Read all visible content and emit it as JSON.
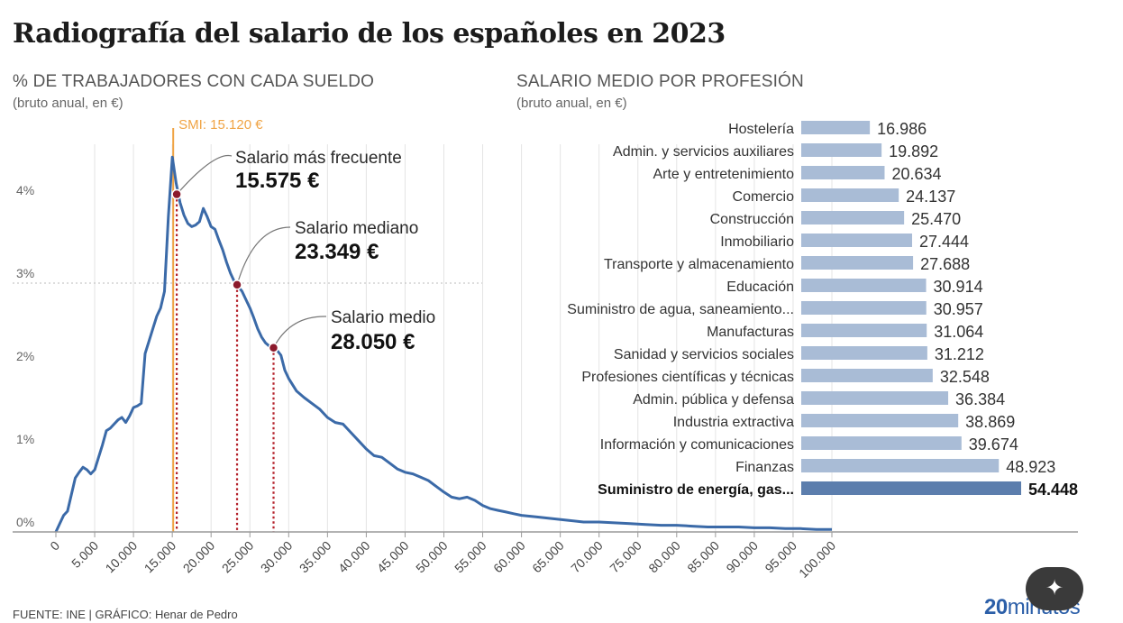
{
  "title": "Radiografía del salario de los españoles en 2023",
  "left": {
    "heading": "% DE TRABAJADORES CON CADA SUELDO",
    "subheading": "(bruto anual, en €)"
  },
  "right": {
    "heading": "SALARIO MEDIO POR PROFESIÓN",
    "subheading": "(bruto anual, en €)"
  },
  "footer": {
    "source": "FUENTE: INE | GRÁFICO: Henar de Pedro"
  },
  "brand": {
    "bold": "20",
    "light": "minutos"
  },
  "fab_icon": "magic-wand-icon",
  "colors": {
    "line": "#3b6aa8",
    "bar": "#a9bcd6",
    "bar_highlight": "#5c7ead",
    "marker_fill": "#8c1a2c",
    "smi": "#f0a445",
    "dotted": "#b4202a"
  },
  "chart_data": [
    {
      "type": "line",
      "title": "% DE TRABAJADORES CON CADA SUELDO",
      "subtitle": "(bruto anual, en €)",
      "xlabel": "",
      "ylabel": "",
      "xlim": [
        0,
        100000
      ],
      "ylim": [
        0,
        4.5
      ],
      "x_ticks": [
        0,
        5000,
        10000,
        15000,
        20000,
        25000,
        30000,
        35000,
        40000,
        45000,
        50000,
        55000,
        60000,
        65000,
        70000,
        75000,
        80000,
        85000,
        90000,
        95000,
        100000
      ],
      "x_tick_labels": [
        "0",
        "5.000",
        "10.000",
        "15.000",
        "20.000",
        "25.000",
        "30.000",
        "35.000",
        "40.000",
        "45.000",
        "50.000",
        "55.000",
        "60.000",
        "65.000",
        "70.000",
        "75.000",
        "80.000",
        "85.000",
        "90.000",
        "95.000",
        "100.000"
      ],
      "y_ticks": [
        0,
        1,
        2,
        3,
        4
      ],
      "y_tick_labels": [
        "0%",
        "1%",
        "2%",
        "3%",
        "4%"
      ],
      "grid": "vertical lines at x ticks, dotted line at 3%",
      "series": [
        {
          "x": [
            0,
            500,
            1000,
            1500,
            2000,
            2500,
            3000,
            3500,
            4000,
            4500,
            5000,
            5500,
            6000,
            6500,
            7000,
            7500,
            8000,
            8500,
            9000,
            9500,
            10000,
            10500,
            11000,
            11500,
            12000,
            12500,
            13000,
            13500,
            14000,
            14500,
            15000,
            15500,
            16000,
            16500,
            17000,
            17500,
            18000,
            18500,
            19000,
            19500,
            20000,
            20500,
            21000,
            21500,
            22000,
            22500,
            23000,
            23500,
            24000,
            24500,
            25000,
            25500,
            26000,
            26500,
            27000,
            27500,
            28000,
            28500,
            29000,
            29500,
            30000,
            31000,
            32000,
            33000,
            34000,
            35000,
            36000,
            37000,
            38000,
            39000,
            40000,
            41000,
            42000,
            43000,
            44000,
            45000,
            46000,
            47000,
            48000,
            49000,
            50000,
            51000,
            52000,
            53000,
            54000,
            55000,
            56000,
            57000,
            58000,
            59000,
            60000,
            62000,
            64000,
            66000,
            68000,
            70000,
            72000,
            74000,
            76000,
            78000,
            80000,
            82000,
            84000,
            86000,
            88000,
            90000,
            92000,
            94000,
            96000,
            98000,
            100000
          ],
          "y": [
            0.0,
            0.1,
            0.2,
            0.25,
            0.45,
            0.65,
            0.72,
            0.78,
            0.75,
            0.7,
            0.75,
            0.9,
            1.05,
            1.22,
            1.25,
            1.3,
            1.35,
            1.38,
            1.32,
            1.4,
            1.5,
            1.52,
            1.55,
            2.15,
            2.3,
            2.45,
            2.6,
            2.7,
            2.9,
            3.8,
            4.52,
            4.2,
            3.97,
            3.82,
            3.72,
            3.68,
            3.7,
            3.74,
            3.9,
            3.8,
            3.68,
            3.65,
            3.52,
            3.4,
            3.25,
            3.12,
            3.02,
            2.96,
            2.9,
            2.8,
            2.7,
            2.58,
            2.45,
            2.35,
            2.28,
            2.24,
            2.22,
            2.19,
            2.13,
            1.95,
            1.85,
            1.7,
            1.62,
            1.55,
            1.48,
            1.38,
            1.32,
            1.3,
            1.2,
            1.1,
            1.0,
            0.92,
            0.9,
            0.83,
            0.76,
            0.72,
            0.7,
            0.66,
            0.62,
            0.55,
            0.48,
            0.42,
            0.4,
            0.42,
            0.38,
            0.32,
            0.28,
            0.26,
            0.24,
            0.22,
            0.2,
            0.18,
            0.16,
            0.14,
            0.12,
            0.12,
            0.11,
            0.1,
            0.09,
            0.08,
            0.08,
            0.07,
            0.06,
            0.06,
            0.06,
            0.05,
            0.05,
            0.04,
            0.04,
            0.03,
            0.03
          ]
        }
      ],
      "reference_line": {
        "label": "SMI: 15.120 €",
        "x": 15120
      },
      "annotations": [
        {
          "label": "Salario más frecuente",
          "value": "15.575 €",
          "x": 15575,
          "y": 4.07
        },
        {
          "label": "Salario mediano",
          "value": "23.349 €",
          "x": 23349,
          "y": 2.98
        },
        {
          "label": "Salario medio",
          "value": "28.050 €",
          "x": 28050,
          "y": 2.22
        }
      ]
    },
    {
      "type": "bar",
      "orientation": "horizontal",
      "title": "SALARIO MEDIO POR PROFESIÓN",
      "subtitle": "(bruto anual, en €)",
      "categories": [
        "Hostelería",
        "Admin. y servicios auxiliares",
        "Arte y entretenimiento",
        "Comercio",
        "Construcción",
        "Inmobiliario",
        "Transporte y almacenamiento",
        "Educación",
        "Suministro de agua, saneamiento...",
        "Manufacturas",
        "Sanidad y servicios sociales",
        "Profesiones científicas y técnicas",
        "Admin. pública y defensa",
        "Industria extractiva",
        "Información y comunicaciones",
        "Finanzas",
        "Suministro de energía, gas..."
      ],
      "values": [
        16986,
        19892,
        20634,
        24137,
        25470,
        27444,
        27688,
        30914,
        30957,
        31064,
        31212,
        32548,
        36384,
        38869,
        39674,
        48923,
        54448
      ],
      "value_labels": [
        "16.986",
        "19.892",
        "20.634",
        "24.137",
        "25.470",
        "27.444",
        "27.688",
        "30.914",
        "30.957",
        "31.064",
        "31.212",
        "32.548",
        "36.384",
        "38.869",
        "39.674",
        "48.923",
        "54.448"
      ],
      "highlight_index": 16,
      "xlim": [
        0,
        54448
      ]
    }
  ]
}
